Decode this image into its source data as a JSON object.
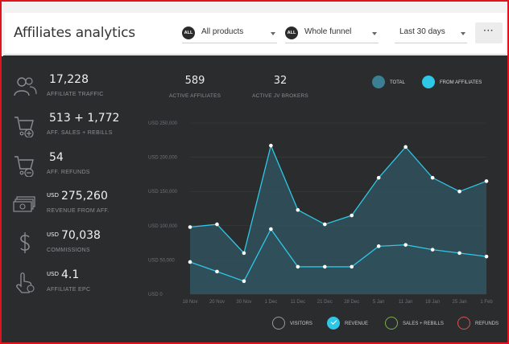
{
  "header": {
    "title": "Affiliates analytics",
    "product_filter": {
      "badge": "ALL",
      "value": "All products"
    },
    "funnel_filter": {
      "badge": "ALL",
      "value": "Whole funnel"
    },
    "date_filter": {
      "value": "Last 30 days"
    },
    "more_label": "···"
  },
  "stats": [
    {
      "value": "17,228",
      "currency": "",
      "label": "AFFILIATE TRAFFIC",
      "icon": "users-icon"
    },
    {
      "value": "513 + 1,772",
      "currency": "",
      "label": "AFF. SALES + REBILLS",
      "icon": "cart-add-icon"
    },
    {
      "value": "54",
      "currency": "",
      "label": "AFF. REFUNDS",
      "icon": "cart-remove-icon"
    },
    {
      "value": "275,260",
      "currency": "USD",
      "label": "REVENUE FROM AFF.",
      "icon": "money-icon"
    },
    {
      "value": "70,038",
      "currency": "USD",
      "label": "COMMISSIONS",
      "icon": "dollar-icon"
    },
    {
      "value": "4.1",
      "currency": "USD",
      "label": "AFFILIATE EPC",
      "icon": "hand-click-icon"
    }
  ],
  "top_metrics": {
    "active_affiliates": {
      "value": "589",
      "label": "ACTIVE AFFILIATES"
    },
    "active_jv_brokers": {
      "value": "32",
      "label": "ACTIVE JV BROKERS"
    }
  },
  "top_legend": [
    {
      "label": "TOTAL",
      "color": "#3a7f93"
    },
    {
      "label": "FROM AFFILIATES",
      "color": "#2ec7e6"
    }
  ],
  "bottom_legend": [
    {
      "label": "VISITORS",
      "color": "#9a9a9a",
      "checked": false
    },
    {
      "label": "REVENUE",
      "color": "#2ec7e6",
      "checked": true
    },
    {
      "label": "SALES + REBILLS",
      "color": "#7fb04a",
      "checked": false
    },
    {
      "label": "REFUNDS",
      "color": "#d9534f",
      "checked": false
    }
  ],
  "chart_data": {
    "type": "area",
    "x": [
      "18 Nov",
      "20 Nov",
      "30 Nov",
      "1 Dec",
      "11 Dec",
      "21 Dec",
      "28 Dec",
      "5 Jan",
      "11 Jan",
      "18 Jan",
      "25 Jan",
      "1 Feb"
    ],
    "ytick_labels": [
      "USD 250,000",
      "USD 200,000",
      "USD 150,000",
      "USD 100,000",
      "USD 50,000",
      "USD 0"
    ],
    "ylim": [
      0,
      250000
    ],
    "series": [
      {
        "name": "TOTAL",
        "values": [
          98000,
          102000,
          60000,
          217000,
          123000,
          102000,
          115000,
          170000,
          215000,
          170000,
          150000,
          165000
        ]
      },
      {
        "name": "FROM AFFILIATES",
        "values": [
          47000,
          33000,
          19000,
          95000,
          40000,
          40000,
          40000,
          70000,
          72000,
          65000,
          60000,
          55000
        ]
      }
    ],
    "colors": {
      "line": "#2ec7e6",
      "area": "#30525e",
      "grid": "#3a3d3f",
      "axis_text": "#6f7376"
    }
  }
}
